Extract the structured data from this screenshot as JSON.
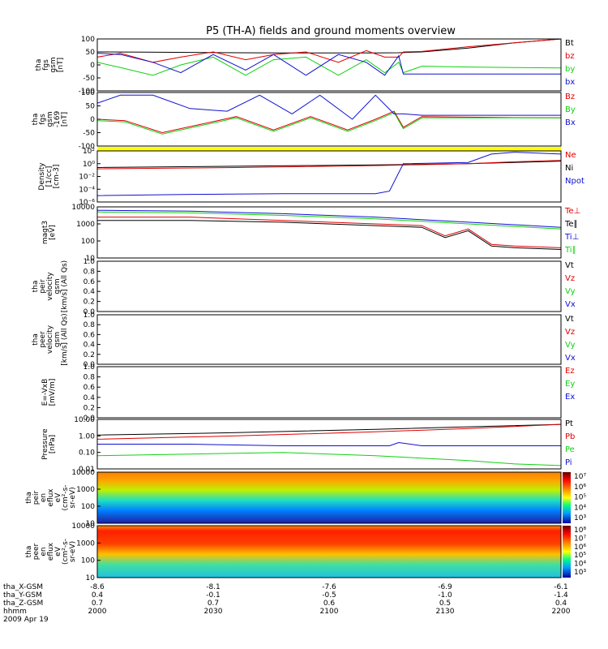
{
  "title": "P5 (TH-A) fields and ground moments overview",
  "colors": {
    "black": "#000000",
    "red": "#e00000",
    "green": "#10d010",
    "blue": "#1010d0",
    "yellow": "#ffff00",
    "frame": "#000000"
  },
  "chart_data": [
    {
      "id": "fgs",
      "type": "line",
      "ylabel": [
        "tha",
        "fgs",
        "gsm",
        "[nT]"
      ],
      "ylim": [
        -100,
        100
      ],
      "yticks": [
        "100",
        "50",
        "0",
        "-50",
        "-100"
      ],
      "legend": [
        {
          "name": "Bt",
          "color": "#000000"
        },
        {
          "name": "bz",
          "color": "#e00000"
        },
        {
          "name": "by",
          "color": "#10d010"
        },
        {
          "name": "bx",
          "color": "#1010d0"
        }
      ],
      "series": [
        {
          "name": "Bt",
          "color": "#000000",
          "x": [
            0,
            0.1,
            0.2,
            0.3,
            0.4,
            0.5,
            0.6,
            0.65,
            0.7,
            0.8,
            0.9,
            1.0
          ],
          "y": [
            50,
            49,
            48,
            47,
            46,
            46,
            46,
            47,
            50,
            65,
            85,
            100
          ]
        },
        {
          "name": "bz",
          "color": "#e00000",
          "x": [
            0,
            0.05,
            0.12,
            0.18,
            0.25,
            0.32,
            0.38,
            0.45,
            0.52,
            0.58,
            0.62,
            0.65,
            0.66,
            0.7,
            0.8,
            0.9,
            1.0
          ],
          "y": [
            30,
            45,
            10,
            30,
            50,
            20,
            40,
            50,
            10,
            55,
            30,
            30,
            50,
            52,
            70,
            85,
            100
          ]
        },
        {
          "name": "by",
          "color": "#10d010",
          "x": [
            0,
            0.05,
            0.12,
            0.18,
            0.25,
            0.32,
            0.38,
            0.45,
            0.52,
            0.58,
            0.62,
            0.65,
            0.66,
            0.7,
            0.8,
            0.9,
            1.0
          ],
          "y": [
            10,
            -10,
            -40,
            0,
            30,
            -40,
            20,
            30,
            -40,
            20,
            -30,
            10,
            -30,
            -5,
            -8,
            -10,
            -12
          ]
        },
        {
          "name": "bx",
          "color": "#1010d0",
          "x": [
            0,
            0.05,
            0.12,
            0.18,
            0.25,
            0.32,
            0.38,
            0.45,
            0.52,
            0.58,
            0.62,
            0.65,
            0.66,
            0.7,
            0.8,
            0.9,
            1.0
          ],
          "y": [
            45,
            40,
            10,
            -30,
            40,
            -20,
            40,
            -40,
            40,
            10,
            -40,
            35,
            -35,
            -35,
            -35,
            -35,
            -35
          ]
        }
      ]
    },
    {
      "id": "fgs-gse",
      "type": "line",
      "ylabel": [
        "tha",
        "fgs",
        "gsm",
        "-169",
        "[nT]"
      ],
      "ylim": [
        -100,
        100
      ],
      "yticks": [
        "100",
        "50",
        "0",
        "-50",
        "-100"
      ],
      "legend": [
        {
          "name": "Bz",
          "color": "#e00000"
        },
        {
          "name": "By",
          "color": "#10d010"
        },
        {
          "name": "Bx",
          "color": "#1010d0"
        }
      ],
      "series": [
        {
          "name": "Bz",
          "color": "#e00000",
          "x": [
            0,
            0.06,
            0.14,
            0.22,
            0.3,
            0.38,
            0.46,
            0.54,
            0.6,
            0.64,
            0.66,
            0.7,
            0.8,
            0.9,
            1.0
          ],
          "y": [
            0,
            -5,
            -50,
            -20,
            10,
            -40,
            10,
            -40,
            0,
            30,
            -30,
            10,
            8,
            6,
            5
          ]
        },
        {
          "name": "By",
          "color": "#10d010",
          "x": [
            0,
            0.06,
            0.14,
            0.22,
            0.3,
            0.38,
            0.46,
            0.54,
            0.6,
            0.64,
            0.66,
            0.7,
            0.8,
            0.9,
            1.0
          ],
          "y": [
            -5,
            -10,
            -55,
            -25,
            5,
            -45,
            5,
            -45,
            -5,
            25,
            -35,
            5,
            5,
            5,
            5
          ]
        },
        {
          "name": "Bx",
          "color": "#1010d0",
          "x": [
            0,
            0.05,
            0.12,
            0.2,
            0.28,
            0.35,
            0.42,
            0.48,
            0.55,
            0.6,
            0.64,
            0.66,
            0.7,
            0.8,
            0.9,
            1.0
          ],
          "y": [
            60,
            90,
            90,
            40,
            30,
            90,
            20,
            90,
            0,
            90,
            20,
            20,
            15,
            15,
            15,
            15
          ]
        }
      ]
    },
    {
      "id": "density",
      "type": "line",
      "log": true,
      "ylabel": [
        "Density",
        "[1/cc]",
        "[cm-3]"
      ],
      "ylim": [
        -6,
        2
      ],
      "yticks": [
        "10²",
        "10⁰",
        "10⁻²",
        "10⁻⁴",
        "10⁻⁶"
      ],
      "legend": [
        {
          "name": "Ne",
          "color": "#e00000"
        },
        {
          "name": "Ni",
          "color": "#000000"
        },
        {
          "name": "Npot",
          "color": "#1010d0"
        }
      ],
      "series": [
        {
          "name": "Ni",
          "color": "#000000",
          "x": [
            0,
            0.3,
            0.6,
            0.8,
            0.9,
            1.0
          ],
          "y": [
            -0.6,
            -0.4,
            -0.2,
            0.0,
            0.2,
            0.4
          ]
        },
        {
          "name": "Ne",
          "color": "#e00000",
          "x": [
            0,
            0.3,
            0.6,
            0.8,
            0.9,
            1.0
          ],
          "y": [
            -0.8,
            -0.6,
            -0.3,
            0.0,
            0.3,
            0.5
          ]
        },
        {
          "name": "Npot",
          "color": "#1010d0",
          "x": [
            0,
            0.2,
            0.4,
            0.6,
            0.63,
            0.66,
            0.8,
            0.85,
            0.9,
            1.0
          ],
          "y": [
            -5.0,
            -4.8,
            -4.7,
            -4.7,
            -4.3,
            0.0,
            0.2,
            1.5,
            1.8,
            1.5
          ]
        }
      ]
    },
    {
      "id": "temp",
      "type": "line",
      "log": true,
      "ylabel": [
        "magt3",
        "[eV]"
      ],
      "ylim": [
        1,
        4
      ],
      "yticks": [
        "10000",
        "1000",
        "100",
        "10"
      ],
      "legend": [
        {
          "name": "Te⊥",
          "color": "#e00000"
        },
        {
          "name": "Te∥",
          "color": "#000000"
        },
        {
          "name": "Ti⊥",
          "color": "#1010d0"
        },
        {
          "name": "Ti∥",
          "color": "#10d010"
        }
      ],
      "series": [
        {
          "name": "Ti⊥",
          "color": "#1010d0",
          "x": [
            0,
            0.2,
            0.4,
            0.6,
            0.8,
            1.0
          ],
          "y": [
            3.8,
            3.75,
            3.6,
            3.4,
            3.1,
            2.8
          ]
        },
        {
          "name": "Ti∥",
          "color": "#10d010",
          "x": [
            0,
            0.2,
            0.4,
            0.6,
            0.8,
            1.0
          ],
          "y": [
            3.7,
            3.65,
            3.5,
            3.3,
            3.0,
            2.7
          ]
        },
        {
          "name": "Te⊥",
          "color": "#e00000",
          "x": [
            0,
            0.2,
            0.4,
            0.6,
            0.7,
            0.75,
            0.8,
            0.85,
            0.9,
            1.0
          ],
          "y": [
            3.4,
            3.4,
            3.2,
            3.0,
            2.9,
            2.3,
            2.7,
            1.8,
            1.7,
            1.6
          ]
        },
        {
          "name": "Te∥",
          "color": "#000000",
          "x": [
            0,
            0.2,
            0.4,
            0.6,
            0.7,
            0.75,
            0.8,
            0.85,
            0.9,
            1.0
          ],
          "y": [
            3.2,
            3.2,
            3.1,
            2.9,
            2.8,
            2.2,
            2.6,
            1.7,
            1.6,
            1.5
          ]
        }
      ]
    },
    {
      "id": "peir-v",
      "type": "line",
      "ylabel": [
        "tha",
        "peir",
        "velocity",
        "gsm",
        "[km/s] (All Qs)"
      ],
      "ylim": [
        0,
        1
      ],
      "yticks": [
        "1.0",
        "0.8",
        "0.6",
        "0.4",
        "0.2",
        "0.0"
      ],
      "legend": [
        {
          "name": "Vt",
          "color": "#000000"
        },
        {
          "name": "Vz",
          "color": "#e00000"
        },
        {
          "name": "Vy",
          "color": "#10d010"
        },
        {
          "name": "Vx",
          "color": "#1010d0"
        }
      ],
      "series": []
    },
    {
      "id": "peer-v",
      "type": "line",
      "ylabel": [
        "tha",
        "peer",
        "velocity",
        "gsm",
        "[km/s] (All Qs)"
      ],
      "ylim": [
        0,
        1
      ],
      "yticks": [
        "1.0",
        "0.8",
        "0.6",
        "0.4",
        "0.2",
        "0.0"
      ],
      "legend": [
        {
          "name": "Vt",
          "color": "#000000"
        },
        {
          "name": "Vz",
          "color": "#e00000"
        },
        {
          "name": "Vy",
          "color": "#10d010"
        },
        {
          "name": "Vx",
          "color": "#1010d0"
        }
      ],
      "series": []
    },
    {
      "id": "efield",
      "type": "line",
      "ylabel": [
        "E=-VxB",
        "[mV/m]"
      ],
      "ylim": [
        0,
        1
      ],
      "yticks": [
        "1.0",
        "0.8",
        "0.6",
        "0.4",
        "0.2",
        "0.0"
      ],
      "legend": [
        {
          "name": "Ez",
          "color": "#e00000"
        },
        {
          "name": "Ey",
          "color": "#10d010"
        },
        {
          "name": "Ex",
          "color": "#1010d0"
        }
      ],
      "series": []
    },
    {
      "id": "pressure",
      "type": "line",
      "log": true,
      "ylabel": [
        "Pressure",
        "[nPa]"
      ],
      "ylim": [
        -2,
        1
      ],
      "yticks": [
        "10.00",
        "1.00",
        "0.10",
        "0.01"
      ],
      "legend": [
        {
          "name": "Pt",
          "color": "#000000"
        },
        {
          "name": "Pb",
          "color": "#e00000"
        },
        {
          "name": "Pe",
          "color": "#10d010"
        },
        {
          "name": "Pi",
          "color": "#1010d0"
        }
      ],
      "series": [
        {
          "name": "Pt",
          "color": "#000000",
          "x": [
            0,
            0.3,
            0.6,
            0.8,
            1.0
          ],
          "y": [
            0.05,
            0.2,
            0.4,
            0.55,
            0.7
          ]
        },
        {
          "name": "Pb",
          "color": "#e00000",
          "x": [
            0,
            0.3,
            0.6,
            0.8,
            1.0
          ],
          "y": [
            -0.2,
            0.0,
            0.25,
            0.45,
            0.7
          ]
        },
        {
          "name": "Pi",
          "color": "#1010d0",
          "x": [
            0,
            0.2,
            0.4,
            0.63,
            0.65,
            0.7,
            0.8,
            1.0
          ],
          "y": [
            -0.5,
            -0.5,
            -0.6,
            -0.6,
            -0.4,
            -0.6,
            -0.6,
            -0.6
          ]
        },
        {
          "name": "Pe",
          "color": "#10d010",
          "x": [
            0,
            0.2,
            0.4,
            0.6,
            0.8,
            0.9,
            1.0
          ],
          "y": [
            -1.2,
            -1.1,
            -1.0,
            -1.2,
            -1.5,
            -1.7,
            -1.8
          ]
        }
      ]
    },
    {
      "id": "peir-spec",
      "type": "heatmap",
      "ylabel": [
        "tha",
        "peir",
        "en",
        "eflux",
        "eV",
        "(cm²-s-",
        "sr-eV)"
      ],
      "yticks": [
        "10000",
        "1000",
        "100",
        "10"
      ],
      "colorbar": [
        "10⁷",
        "10⁶",
        "10⁵",
        "10⁴",
        "10³"
      ]
    },
    {
      "id": "peer-spec",
      "type": "heatmap",
      "ylabel": [
        "tha",
        "peer",
        "en",
        "eflux",
        "eV",
        "(cm²-s-",
        "sr-eV)"
      ],
      "yticks": [
        "10000",
        "1000",
        "100",
        "10"
      ],
      "colorbar": [
        "10⁸",
        "10⁷",
        "10⁶",
        "10⁵",
        "10⁴",
        "10³"
      ]
    }
  ],
  "xaxis": {
    "rows": [
      {
        "label": "tha_X-GSM",
        "values": [
          "-8.6",
          "-8.1",
          "-7.6",
          "-6.9",
          "-6.1"
        ]
      },
      {
        "label": "tha_Y-GSM",
        "values": [
          "0.4",
          "-0.1",
          "-0.5",
          "-1.0",
          "-1.4"
        ]
      },
      {
        "label": "tha_Z-GSM",
        "values": [
          "0.7",
          "0.7",
          "0.6",
          "0.5",
          "0.4"
        ]
      },
      {
        "label": "hhmm",
        "values": [
          "2000",
          "2030",
          "2100",
          "2130",
          "2200"
        ]
      }
    ],
    "date": "2009 Apr 19"
  }
}
